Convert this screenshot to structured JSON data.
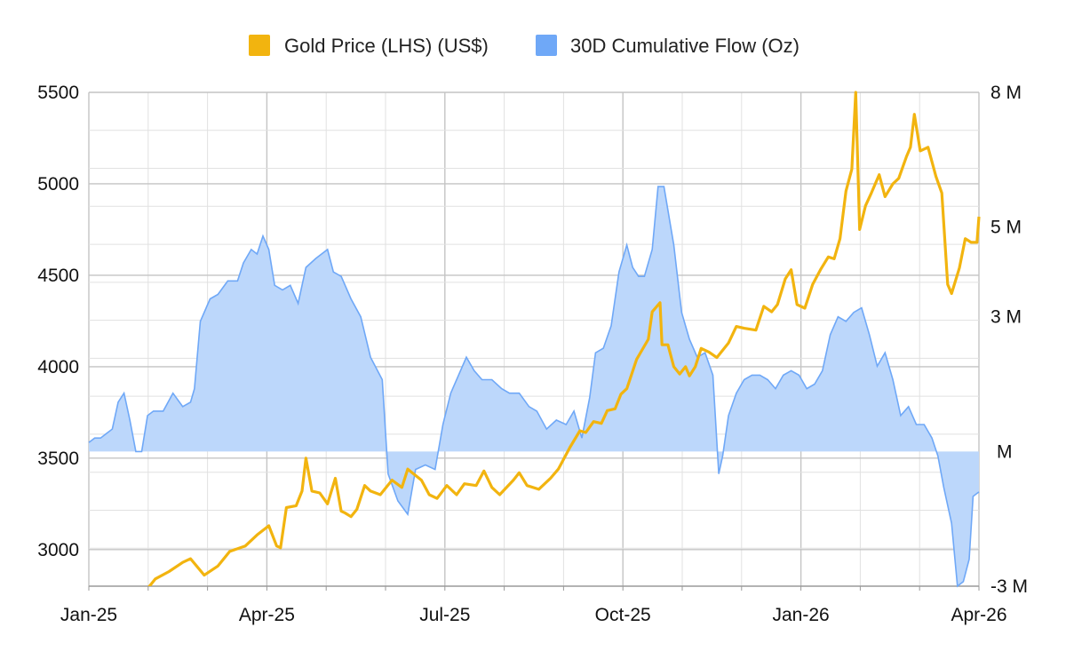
{
  "chart_data": {
    "type": "line",
    "legend": {
      "position": "top",
      "entries": [
        {
          "key": "gold",
          "label": "Gold Price (LHS) (US$)",
          "color": "#F2B40F"
        },
        {
          "key": "flow",
          "label": "30D Cumulative Flow (Oz)",
          "color": "#6FA8F7"
        }
      ]
    },
    "x_ticks": [
      "Jan-25",
      "Apr-25",
      "Jul-25",
      "Oct-25",
      "Jan-26",
      "Apr-26"
    ],
    "x_range": [
      "2025-01-01",
      "2026-04-01"
    ],
    "y_left": {
      "ticks": [
        "5500",
        "5000",
        "4500",
        "4000",
        "3500",
        "3000"
      ],
      "range": [
        2800,
        5500
      ]
    },
    "y_right": {
      "ticks": [
        "8 M",
        "5 M",
        "3 M",
        "M",
        "-3 M"
      ],
      "range": [
        -3000000,
        8000000
      ]
    },
    "grid": true,
    "series": [
      {
        "name": "Gold Price (LHS) (US$)",
        "axis": "left",
        "style": "line",
        "color": "#F2B40F",
        "points": [
          [
            "2025-01-29",
            2760
          ],
          [
            "2025-02-04",
            2840
          ],
          [
            "2025-02-11",
            2880
          ],
          [
            "2025-02-18",
            2930
          ],
          [
            "2025-02-22",
            2950
          ],
          [
            "2025-03-01",
            2860
          ],
          [
            "2025-03-08",
            2910
          ],
          [
            "2025-03-14",
            2990
          ],
          [
            "2025-03-22",
            3020
          ],
          [
            "2025-03-28",
            3080
          ],
          [
            "2025-04-03",
            3130
          ],
          [
            "2025-04-07",
            3020
          ],
          [
            "2025-04-09",
            3010
          ],
          [
            "2025-04-12",
            3230
          ],
          [
            "2025-04-17",
            3240
          ],
          [
            "2025-04-20",
            3320
          ],
          [
            "2025-04-22",
            3500
          ],
          [
            "2025-04-25",
            3320
          ],
          [
            "2025-04-29",
            3310
          ],
          [
            "2025-05-03",
            3250
          ],
          [
            "2025-05-07",
            3390
          ],
          [
            "2025-05-10",
            3210
          ],
          [
            "2025-05-12",
            3200
          ],
          [
            "2025-05-15",
            3180
          ],
          [
            "2025-05-18",
            3220
          ],
          [
            "2025-05-22",
            3350
          ],
          [
            "2025-05-25",
            3320
          ],
          [
            "2025-05-30",
            3300
          ],
          [
            "2025-06-05",
            3380
          ],
          [
            "2025-06-10",
            3340
          ],
          [
            "2025-06-13",
            3440
          ],
          [
            "2025-06-20",
            3380
          ],
          [
            "2025-06-24",
            3300
          ],
          [
            "2025-06-28",
            3280
          ],
          [
            "2025-07-03",
            3350
          ],
          [
            "2025-07-08",
            3300
          ],
          [
            "2025-07-12",
            3360
          ],
          [
            "2025-07-18",
            3350
          ],
          [
            "2025-07-22",
            3430
          ],
          [
            "2025-07-26",
            3340
          ],
          [
            "2025-07-30",
            3300
          ],
          [
            "2025-08-06",
            3380
          ],
          [
            "2025-08-09",
            3420
          ],
          [
            "2025-08-13",
            3350
          ],
          [
            "2025-08-19",
            3330
          ],
          [
            "2025-08-25",
            3390
          ],
          [
            "2025-08-29",
            3440
          ],
          [
            "2025-09-01",
            3500
          ],
          [
            "2025-09-04",
            3560
          ],
          [
            "2025-09-09",
            3650
          ],
          [
            "2025-09-12",
            3640
          ],
          [
            "2025-09-16",
            3700
          ],
          [
            "2025-09-20",
            3690
          ],
          [
            "2025-09-23",
            3760
          ],
          [
            "2025-09-27",
            3770
          ],
          [
            "2025-09-30",
            3850
          ],
          [
            "2025-10-03",
            3880
          ],
          [
            "2025-10-08",
            4040
          ],
          [
            "2025-10-14",
            4150
          ],
          [
            "2025-10-16",
            4300
          ],
          [
            "2025-10-20",
            4350
          ],
          [
            "2025-10-21",
            4120
          ],
          [
            "2025-10-24",
            4120
          ],
          [
            "2025-10-27",
            4000
          ],
          [
            "2025-10-30",
            3960
          ],
          [
            "2025-11-02",
            4000
          ],
          [
            "2025-11-04",
            3950
          ],
          [
            "2025-11-07",
            4000
          ],
          [
            "2025-11-10",
            4100
          ],
          [
            "2025-11-14",
            4080
          ],
          [
            "2025-11-18",
            4050
          ],
          [
            "2025-11-24",
            4130
          ],
          [
            "2025-11-28",
            4220
          ],
          [
            "2025-12-02",
            4210
          ],
          [
            "2025-12-08",
            4200
          ],
          [
            "2025-12-12",
            4330
          ],
          [
            "2025-12-16",
            4300
          ],
          [
            "2025-12-19",
            4340
          ],
          [
            "2025-12-23",
            4480
          ],
          [
            "2025-12-26",
            4530
          ],
          [
            "2025-12-29",
            4340
          ],
          [
            "2026-01-02",
            4320
          ],
          [
            "2026-01-06",
            4450
          ],
          [
            "2026-01-10",
            4530
          ],
          [
            "2026-01-14",
            4600
          ],
          [
            "2026-01-17",
            4590
          ],
          [
            "2026-01-20",
            4700
          ],
          [
            "2026-01-23",
            4960
          ],
          [
            "2026-01-26",
            5080
          ],
          [
            "2026-01-28",
            5500
          ],
          [
            "2026-01-30",
            4750
          ],
          [
            "2026-02-02",
            4880
          ],
          [
            "2026-02-05",
            4950
          ],
          [
            "2026-02-09",
            5050
          ],
          [
            "2026-02-12",
            4930
          ],
          [
            "2026-02-16",
            5000
          ],
          [
            "2026-02-19",
            5030
          ],
          [
            "2026-02-23",
            5150
          ],
          [
            "2026-02-25",
            5200
          ],
          [
            "2026-02-27",
            5380
          ],
          [
            "2026-03-02",
            5180
          ],
          [
            "2026-03-06",
            5200
          ],
          [
            "2026-03-10",
            5040
          ],
          [
            "2026-03-13",
            4950
          ],
          [
            "2026-03-16",
            4450
          ],
          [
            "2026-03-18",
            4400
          ],
          [
            "2026-03-22",
            4540
          ],
          [
            "2026-03-25",
            4700
          ],
          [
            "2026-03-28",
            4680
          ],
          [
            "2026-03-31",
            4680
          ],
          [
            "2026-04-01",
            4820
          ]
        ]
      },
      {
        "name": "30D Cumulative Flow (Oz)",
        "axis": "right",
        "style": "area",
        "color": "#6FA8F7",
        "points": [
          [
            "2025-01-01",
            0.2
          ],
          [
            "2025-01-04",
            0.3
          ],
          [
            "2025-01-07",
            0.3
          ],
          [
            "2025-01-10",
            0.4
          ],
          [
            "2025-01-13",
            0.5
          ],
          [
            "2025-01-16",
            1.1
          ],
          [
            "2025-01-19",
            1.3
          ],
          [
            "2025-01-22",
            0.7
          ],
          [
            "2025-01-25",
            0.0
          ],
          [
            "2025-01-28",
            0.0
          ],
          [
            "2025-01-31",
            0.8
          ],
          [
            "2025-02-03",
            0.9
          ],
          [
            "2025-02-08",
            0.9
          ],
          [
            "2025-02-13",
            1.3
          ],
          [
            "2025-02-18",
            1.0
          ],
          [
            "2025-02-22",
            1.1
          ],
          [
            "2025-02-24",
            1.4
          ],
          [
            "2025-02-27",
            2.9
          ],
          [
            "2025-03-04",
            3.4
          ],
          [
            "2025-03-08",
            3.5
          ],
          [
            "2025-03-13",
            3.8
          ],
          [
            "2025-03-18",
            3.8
          ],
          [
            "2025-03-21",
            4.2
          ],
          [
            "2025-03-25",
            4.5
          ],
          [
            "2025-03-28",
            4.4
          ],
          [
            "2025-03-31",
            4.8
          ],
          [
            "2025-04-03",
            4.5
          ],
          [
            "2025-04-06",
            3.7
          ],
          [
            "2025-04-10",
            3.6
          ],
          [
            "2025-04-14",
            3.7
          ],
          [
            "2025-04-18",
            3.3
          ],
          [
            "2025-04-22",
            4.1
          ],
          [
            "2025-04-27",
            4.3
          ],
          [
            "2025-05-03",
            4.5
          ],
          [
            "2025-05-06",
            4.0
          ],
          [
            "2025-05-10",
            3.9
          ],
          [
            "2025-05-15",
            3.4
          ],
          [
            "2025-05-20",
            3.0
          ],
          [
            "2025-05-25",
            2.1
          ],
          [
            "2025-05-31",
            1.6
          ],
          [
            "2025-06-03",
            -0.5
          ],
          [
            "2025-06-08",
            -1.1
          ],
          [
            "2025-06-13",
            -1.4
          ],
          [
            "2025-06-17",
            -0.4
          ],
          [
            "2025-06-22",
            -0.3
          ],
          [
            "2025-06-27",
            -0.4
          ],
          [
            "2025-07-01",
            0.6
          ],
          [
            "2025-07-05",
            1.3
          ],
          [
            "2025-07-09",
            1.7
          ],
          [
            "2025-07-13",
            2.1
          ],
          [
            "2025-07-17",
            1.8
          ],
          [
            "2025-07-21",
            1.6
          ],
          [
            "2025-07-26",
            1.6
          ],
          [
            "2025-07-31",
            1.4
          ],
          [
            "2025-08-04",
            1.3
          ],
          [
            "2025-08-09",
            1.3
          ],
          [
            "2025-08-14",
            1.0
          ],
          [
            "2025-08-18",
            0.9
          ],
          [
            "2025-08-23",
            0.5
          ],
          [
            "2025-08-28",
            0.7
          ],
          [
            "2025-09-02",
            0.6
          ],
          [
            "2025-09-06",
            0.9
          ],
          [
            "2025-09-10",
            0.3
          ],
          [
            "2025-09-14",
            1.2
          ],
          [
            "2025-09-17",
            2.2
          ],
          [
            "2025-09-21",
            2.3
          ],
          [
            "2025-09-25",
            2.8
          ],
          [
            "2025-09-29",
            4.0
          ],
          [
            "2025-10-03",
            4.6
          ],
          [
            "2025-10-06",
            4.1
          ],
          [
            "2025-10-09",
            3.9
          ],
          [
            "2025-10-12",
            3.9
          ],
          [
            "2025-10-16",
            4.5
          ],
          [
            "2025-10-19",
            5.9
          ],
          [
            "2025-10-22",
            5.9
          ],
          [
            "2025-10-27",
            4.6
          ],
          [
            "2025-10-31",
            3.1
          ],
          [
            "2025-11-04",
            2.5
          ],
          [
            "2025-11-08",
            2.1
          ],
          [
            "2025-11-12",
            2.2
          ],
          [
            "2025-11-16",
            1.7
          ],
          [
            "2025-11-19",
            -0.5
          ],
          [
            "2025-11-21",
            -0.1
          ],
          [
            "2025-11-24",
            0.8
          ],
          [
            "2025-11-28",
            1.3
          ],
          [
            "2025-12-02",
            1.6
          ],
          [
            "2025-12-06",
            1.7
          ],
          [
            "2025-12-10",
            1.7
          ],
          [
            "2025-12-14",
            1.6
          ],
          [
            "2025-12-18",
            1.4
          ],
          [
            "2025-12-22",
            1.7
          ],
          [
            "2025-12-26",
            1.8
          ],
          [
            "2025-12-30",
            1.7
          ],
          [
            "2026-01-03",
            1.4
          ],
          [
            "2026-01-07",
            1.5
          ],
          [
            "2026-01-11",
            1.8
          ],
          [
            "2026-01-15",
            2.6
          ],
          [
            "2026-01-19",
            3.0
          ],
          [
            "2026-01-23",
            2.9
          ],
          [
            "2026-01-27",
            3.1
          ],
          [
            "2026-01-31",
            3.2
          ],
          [
            "2026-02-04",
            2.6
          ],
          [
            "2026-02-08",
            1.9
          ],
          [
            "2026-02-12",
            2.2
          ],
          [
            "2026-02-16",
            1.6
          ],
          [
            "2026-02-20",
            0.8
          ],
          [
            "2026-02-24",
            1.0
          ],
          [
            "2026-02-28",
            0.6
          ],
          [
            "2026-03-04",
            0.6
          ],
          [
            "2026-03-08",
            0.3
          ],
          [
            "2026-03-11",
            -0.1
          ],
          [
            "2026-03-14",
            -0.8
          ],
          [
            "2026-03-18",
            -1.6
          ],
          [
            "2026-03-21",
            -3.0
          ],
          [
            "2026-03-24",
            -2.9
          ],
          [
            "2026-03-27",
            -2.4
          ],
          [
            "2026-03-29",
            -1.0
          ],
          [
            "2026-04-01",
            -0.9
          ]
        ]
      }
    ]
  }
}
